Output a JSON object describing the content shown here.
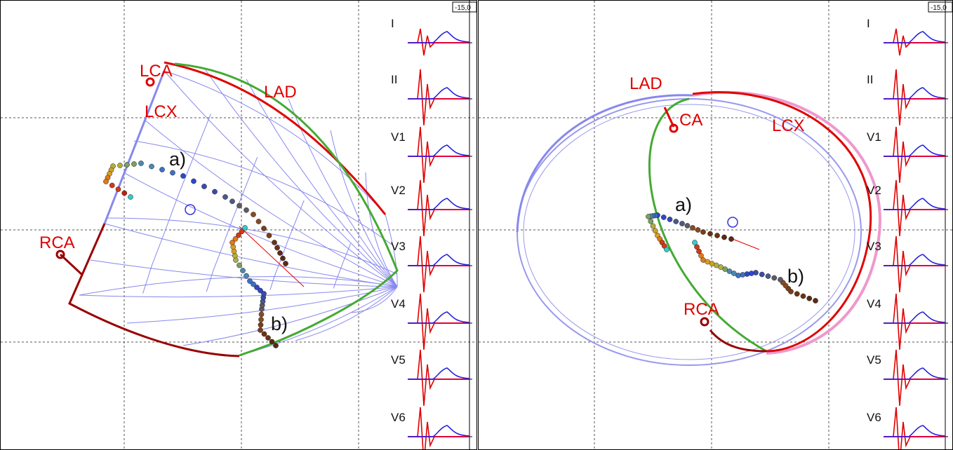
{
  "panels": [
    {
      "id": "left",
      "scale_label": "-15,0",
      "artery_labels": {
        "lca": "LCA",
        "lad": "LAD",
        "lcx": "LCX",
        "rca": "RCA"
      },
      "path_labels": {
        "a": "a)",
        "b": "b)"
      },
      "leads": [
        "I",
        "II",
        "V1",
        "V2",
        "V3",
        "V4",
        "V5",
        "V6"
      ]
    },
    {
      "id": "right",
      "scale_label": "-15,0",
      "artery_labels": {
        "lad": "LAD",
        "lca": "CA",
        "lcx": "LCX",
        "rca": "RCA"
      },
      "path_labels": {
        "a": "a)",
        "b": "b)"
      },
      "leads": [
        "I",
        "II",
        "V1",
        "V2",
        "V3",
        "V4",
        "V5",
        "V6"
      ]
    }
  ],
  "colors": {
    "lad": "#e00000",
    "anterior": "#44aa33",
    "lcx_wall": "#8888ee",
    "rca": "#990000",
    "ecg_main": "#e00000",
    "ecg_secondary": "#2222dd",
    "baseline": "#ee00ee",
    "grid": "#555555"
  }
}
